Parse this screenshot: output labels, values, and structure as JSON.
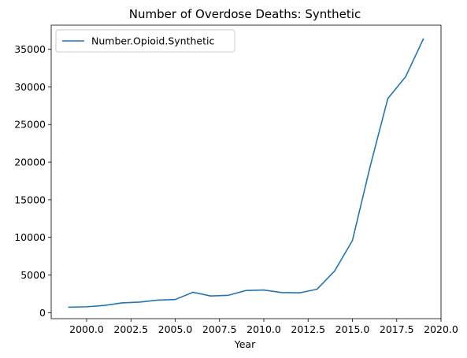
{
  "chart_data": {
    "type": "line",
    "title": "Number of Overdose Deaths: Synthetic",
    "xlabel": "Year",
    "ylabel": "",
    "xlim": [
      1998.0,
      2020.0
    ],
    "ylim": [
      -800,
      38200
    ],
    "xticks": [
      2000.0,
      2002.5,
      2005.0,
      2007.5,
      2010.0,
      2012.5,
      2015.0,
      2017.5,
      2020.0
    ],
    "xtick_labels": [
      "2000.0",
      "2002.5",
      "2005.0",
      "2007.5",
      "2010.0",
      "2012.5",
      "2015.0",
      "2017.5",
      "2020.0"
    ],
    "yticks": [
      0,
      5000,
      10000,
      15000,
      20000,
      25000,
      30000,
      35000
    ],
    "ytick_labels": [
      "0",
      "5000",
      "10000",
      "15000",
      "20000",
      "25000",
      "30000",
      "35000"
    ],
    "grid": false,
    "legend_position": "top-left",
    "colors": {
      "series": "#1f77b4",
      "axes": "#000000"
    },
    "series": [
      {
        "name": "Number.Opioid.Synthetic",
        "x": [
          1999,
          2000,
          2001,
          2002,
          2003,
          2004,
          2005,
          2006,
          2007,
          2008,
          2009,
          2010,
          2011,
          2012,
          2013,
          2014,
          2015,
          2016,
          2017,
          2018,
          2019
        ],
        "y": [
          730,
          782,
          957,
          1295,
          1400,
          1664,
          1742,
          2707,
          2213,
          2306,
          2946,
          3007,
          2666,
          2628,
          3105,
          5544,
          9580,
          19413,
          28466,
          31335,
          36359
        ]
      }
    ]
  }
}
